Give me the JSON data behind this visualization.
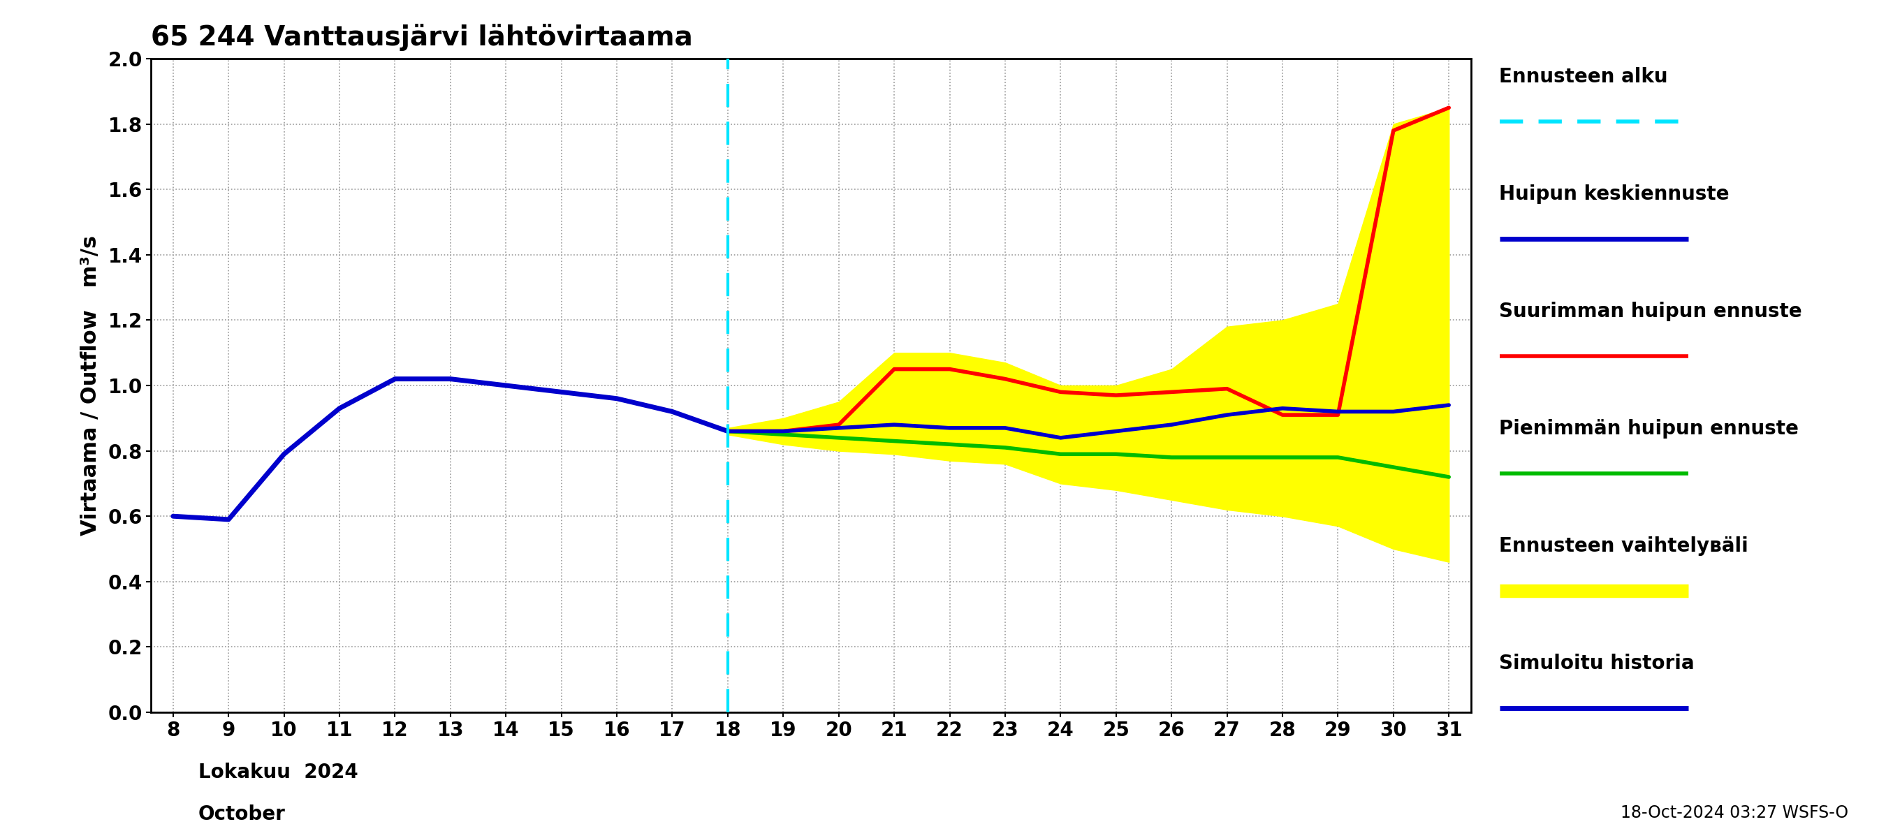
{
  "title": "65 244 Vanttausjärvi lähtövirtaama",
  "ylabel": "Virtaama / Outflow   m³/s",
  "xlabel_line1": "Lokakuu  2024",
  "xlabel_line2": "October",
  "x_start": 8,
  "x_end": 31,
  "forecast_start": 18,
  "ylim": [
    0.0,
    2.0
  ],
  "yticks": [
    0.0,
    0.2,
    0.4,
    0.6,
    0.8,
    1.0,
    1.2,
    1.4,
    1.6,
    1.8,
    2.0
  ],
  "xticks": [
    8,
    9,
    10,
    11,
    12,
    13,
    14,
    15,
    16,
    17,
    18,
    19,
    20,
    21,
    22,
    23,
    24,
    25,
    26,
    27,
    28,
    29,
    30,
    31
  ],
  "simuloitu_x": [
    8,
    9,
    10,
    11,
    12,
    13,
    14,
    15,
    16,
    17,
    18
  ],
  "simuloitu_y": [
    0.6,
    0.59,
    0.79,
    0.93,
    1.02,
    1.02,
    1.0,
    0.98,
    0.96,
    0.92,
    0.86
  ],
  "red_x": [
    18,
    19,
    20,
    21,
    22,
    23,
    24,
    25,
    26,
    27,
    28,
    29,
    30,
    31
  ],
  "red_y": [
    0.86,
    0.86,
    0.88,
    1.05,
    1.05,
    1.02,
    0.98,
    0.97,
    0.98,
    0.99,
    0.91,
    0.91,
    1.78,
    1.85
  ],
  "green_x": [
    18,
    19,
    20,
    21,
    22,
    23,
    24,
    25,
    26,
    27,
    28,
    29,
    30,
    31
  ],
  "green_y": [
    0.86,
    0.85,
    0.84,
    0.83,
    0.82,
    0.81,
    0.79,
    0.79,
    0.78,
    0.78,
    0.78,
    0.78,
    0.75,
    0.72
  ],
  "mean_x": [
    18,
    19,
    20,
    21,
    22,
    23,
    24,
    25,
    26,
    27,
    28,
    29,
    30,
    31
  ],
  "mean_y": [
    0.86,
    0.86,
    0.87,
    0.88,
    0.87,
    0.87,
    0.84,
    0.86,
    0.88,
    0.91,
    0.93,
    0.92,
    0.92,
    0.94
  ],
  "fill_x": [
    18,
    19,
    20,
    21,
    22,
    23,
    24,
    25,
    26,
    27,
    28,
    29,
    30,
    31
  ],
  "fill_upper": [
    0.87,
    0.9,
    0.95,
    1.1,
    1.1,
    1.07,
    1.0,
    1.0,
    1.05,
    1.18,
    1.2,
    1.25,
    1.8,
    1.85
  ],
  "fill_lower": [
    0.85,
    0.82,
    0.8,
    0.79,
    0.77,
    0.76,
    0.7,
    0.68,
    0.65,
    0.62,
    0.6,
    0.57,
    0.5,
    0.46
  ],
  "legend_labels": [
    "Ennusteen alku",
    "Huipun keskiennuste",
    "Suurimman huipun ennuste",
    "Pienimmän huipun ennuste",
    "Ennusteen vaihtelувäli",
    "Simuloitu historia"
  ],
  "legend_labels_correct": [
    "Ennusteen alku",
    "Huipun keskiennuste",
    "Suurimman huipun ennuste",
    "Pienimmän huipun ennuste",
    "Ennusteen vaihtelувäli",
    "Simuloitu historia"
  ],
  "colors": {
    "simuloitu": "#0000cc",
    "red": "#ff0000",
    "green": "#00bb00",
    "mean": "#0000cc",
    "fill": "#ffff00",
    "cyan_vline": "#00e5ff",
    "background": "#ffffff",
    "grid_major": "#999999",
    "grid_minor": "#cccccc"
  },
  "footnote": "18-Oct-2024 03:27 WSFS-O"
}
